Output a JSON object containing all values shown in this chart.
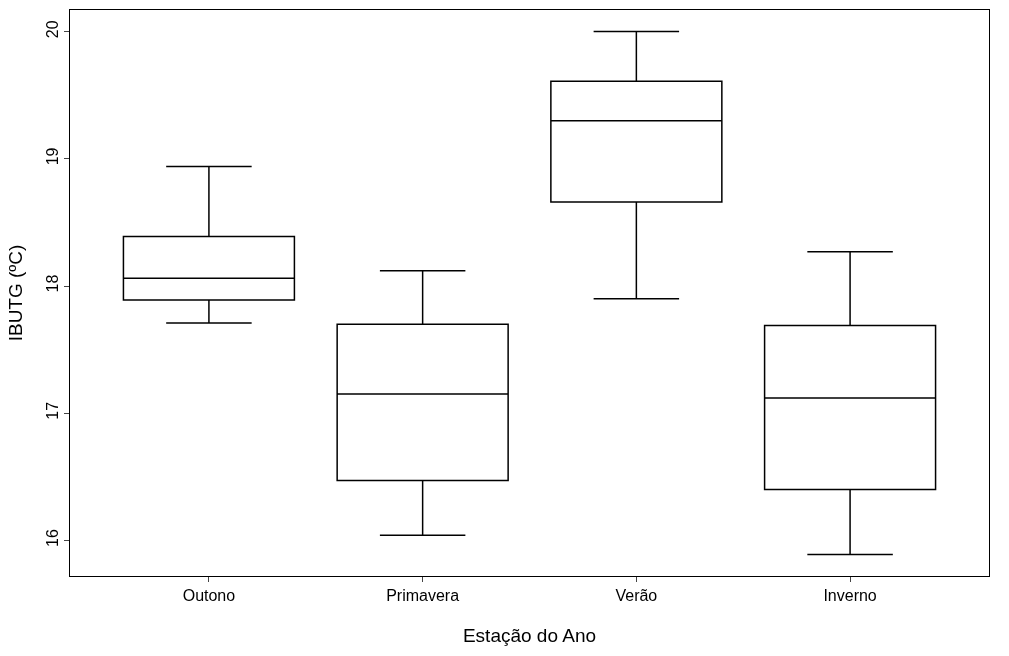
{
  "chart_data": {
    "type": "box",
    "xlabel": "Estação do Ano",
    "ylabel": "IBUTG (ºC)",
    "categories": [
      "Outono",
      "Primavera",
      "Verão",
      "Inverno"
    ],
    "boxes": [
      {
        "low": 17.71,
        "q1": 17.89,
        "median": 18.06,
        "q3": 18.39,
        "high": 18.94
      },
      {
        "low": 16.04,
        "q1": 16.47,
        "median": 17.15,
        "q3": 17.7,
        "high": 18.12
      },
      {
        "low": 17.9,
        "q1": 18.66,
        "median": 19.3,
        "q3": 19.61,
        "high": 20.0
      },
      {
        "low": 15.89,
        "q1": 16.4,
        "median": 17.12,
        "q3": 17.69,
        "high": 18.27
      }
    ],
    "color": "#000000",
    "ylim": [
      15.72,
      20.17
    ],
    "yticks": [
      16,
      17,
      18,
      19,
      20
    ]
  }
}
